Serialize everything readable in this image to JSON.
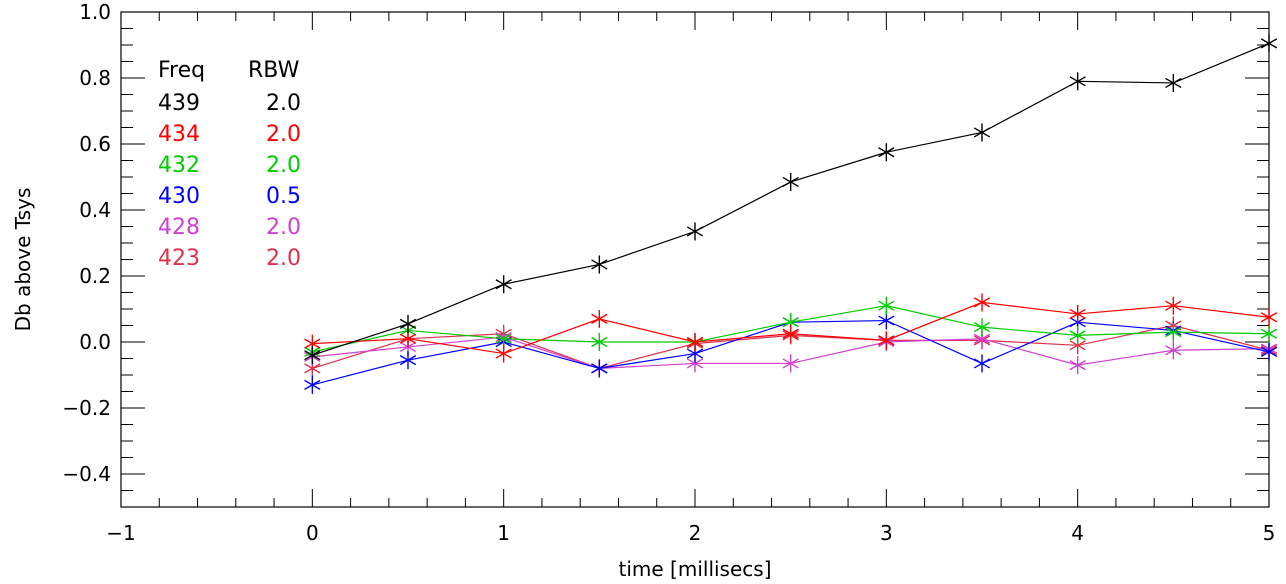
{
  "chart_data": {
    "type": "line",
    "title": "",
    "xlabel": "time [millisecs]",
    "ylabel": "Db above Tsys",
    "xlim": [
      -1,
      5
    ],
    "ylim": [
      -0.5,
      1.0
    ],
    "x_ticks": [
      -1,
      0,
      1,
      2,
      3,
      4,
      5
    ],
    "x_tick_labels": [
      "−1",
      "0",
      "1",
      "2",
      "3",
      "4",
      "5"
    ],
    "y_ticks": [
      -0.4,
      -0.2,
      0.0,
      0.2,
      0.4,
      0.6,
      0.8,
      1.0
    ],
    "y_tick_labels": [
      "−0.4",
      "−0.2",
      "0.0",
      "0.2",
      "0.4",
      "0.6",
      "0.8",
      "1.0"
    ],
    "grid": false,
    "legend": {
      "position": "top-left",
      "header_freq": "Freq",
      "header_rbw": "RBW"
    },
    "x": [
      0,
      0.5,
      1,
      1.5,
      2,
      2.5,
      3,
      3.5,
      4,
      4.5,
      5
    ],
    "series": [
      {
        "freq": "439",
        "rbw": "2.0",
        "color": "#000000",
        "values": [
          -0.04,
          0.055,
          0.175,
          0.235,
          0.335,
          0.485,
          0.575,
          0.635,
          0.79,
          0.785,
          0.905
        ]
      },
      {
        "freq": "434",
        "rbw": "2.0",
        "color": "#ff0000",
        "values": [
          -0.005,
          0.01,
          -0.035,
          0.07,
          0.0,
          0.025,
          0.005,
          0.12,
          0.085,
          0.11,
          0.075
        ]
      },
      {
        "freq": "432",
        "rbw": "2.0",
        "color": "#00cc00",
        "values": [
          -0.03,
          0.035,
          0.01,
          0.0,
          0.0,
          0.06,
          0.11,
          0.045,
          0.02,
          0.03,
          0.025
        ]
      },
      {
        "freq": "430",
        "rbw": "0.5",
        "color": "#0000ff",
        "values": [
          -0.13,
          -0.055,
          0.0,
          -0.08,
          -0.035,
          0.06,
          0.065,
          -0.065,
          0.06,
          0.035,
          -0.03
        ]
      },
      {
        "freq": "428",
        "rbw": "2.0",
        "color": "#d040d0",
        "values": [
          -0.045,
          -0.015,
          0.015,
          -0.08,
          -0.065,
          -0.065,
          0.0,
          0.01,
          -0.07,
          -0.025,
          -0.02
        ]
      },
      {
        "freq": "423",
        "rbw": "2.0",
        "color": "#e0304a",
        "values": [
          -0.08,
          0.01,
          0.025,
          -0.08,
          -0.005,
          0.02,
          0.005,
          0.005,
          -0.01,
          0.05,
          -0.025
        ]
      }
    ]
  }
}
